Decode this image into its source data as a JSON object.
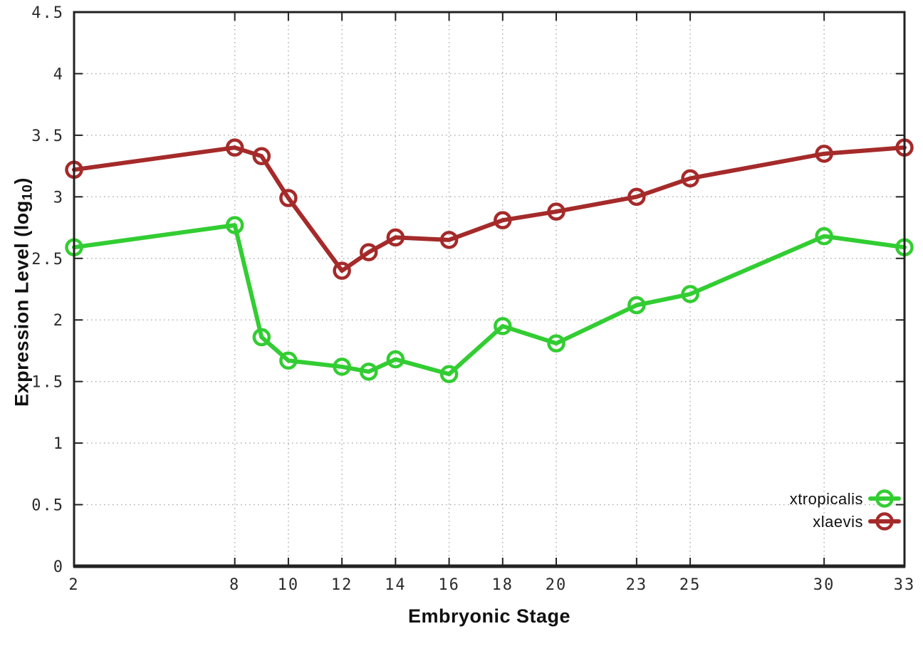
{
  "chart_data": {
    "type": "line",
    "xlabel": "Embryonic Stage",
    "ylabel": "Expression Level (log10)",
    "ylabel_parts": {
      "pre": "Expression Level (log",
      "sub": "10",
      "post": ")"
    },
    "xlim": [
      2,
      33
    ],
    "ylim": [
      0,
      4.5
    ],
    "grid": true,
    "grid_style": "dotted",
    "legend_position": "bottom-right",
    "x": [
      2,
      8,
      9,
      10,
      12,
      13,
      14,
      16,
      18,
      20,
      23,
      25,
      30,
      33
    ],
    "series": [
      {
        "name": "xtropicalis",
        "color": "#32CD32",
        "marker": "open-circle",
        "values": [
          2.59,
          2.77,
          1.86,
          1.67,
          1.62,
          1.58,
          1.68,
          1.56,
          1.95,
          1.81,
          2.12,
          2.21,
          2.68,
          2.59
        ]
      },
      {
        "name": "xlaevis",
        "color": "#A52A2A",
        "marker": "open-circle",
        "values": [
          3.22,
          3.4,
          3.33,
          2.99,
          2.4,
          2.55,
          2.67,
          2.65,
          2.81,
          2.88,
          3.0,
          3.15,
          3.35,
          3.4
        ]
      }
    ],
    "xticks": [
      {
        "value": 2,
        "label": "2"
      },
      {
        "value": 8,
        "label": "8"
      },
      {
        "value": 10,
        "label": "10"
      },
      {
        "value": 12,
        "label": "12"
      },
      {
        "value": 14,
        "label": "14"
      },
      {
        "value": 16,
        "label": "16"
      },
      {
        "value": 18,
        "label": "18"
      },
      {
        "value": 20,
        "label": "20"
      },
      {
        "value": 23,
        "label": "23"
      },
      {
        "value": 25,
        "label": "25"
      },
      {
        "value": 30,
        "label": "30"
      },
      {
        "value": 33,
        "label": "33"
      }
    ],
    "yticks": [
      {
        "value": 0,
        "label": "0"
      },
      {
        "value": 0.5,
        "label": "0.5"
      },
      {
        "value": 1,
        "label": "1"
      },
      {
        "value": 1.5,
        "label": "1.5"
      },
      {
        "value": 2,
        "label": "2"
      },
      {
        "value": 2.5,
        "label": "2.5"
      },
      {
        "value": 3,
        "label": "3"
      },
      {
        "value": 3.5,
        "label": "3.5"
      },
      {
        "value": 4,
        "label": "4"
      },
      {
        "value": 4.5,
        "label": "4.5"
      }
    ],
    "colors": {
      "border": "#222222",
      "grid": "#aaaaaa",
      "tick_text": "#2b2b2b",
      "title_text": "#111111",
      "background": "#ffffff"
    }
  }
}
